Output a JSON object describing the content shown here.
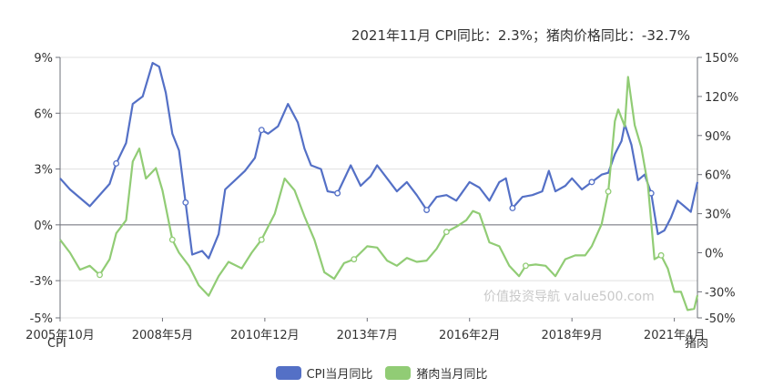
{
  "title": "2021年11月 CPI同比：2.3%；猪肉价格同比：-32.7%",
  "watermark": "价值投资导航 value500.com",
  "colors": {
    "cpi": "#5470c6",
    "pork": "#91cc75",
    "grid": "#e0e0e0",
    "axis": "#6e7079"
  },
  "chart_data": {
    "type": "line",
    "x_tick_labels": [
      "2005年10月",
      "2008年5月",
      "2010年12月",
      "2013年7月",
      "2016年2月",
      "2018年9月",
      "2021年4月"
    ],
    "y_left": {
      "name": "CPI",
      "ticks": [
        "9%",
        "6%",
        "3%",
        "0%",
        "-3%",
        "-5%"
      ],
      "tick_values": [
        9,
        6,
        3,
        0,
        -3,
        -5
      ],
      "min": -5,
      "max": 9
    },
    "y_right": {
      "name": "猪肉",
      "ticks": [
        "150%",
        "120%",
        "90%",
        "60%",
        "30%",
        "0%",
        "-30%",
        "-50%"
      ],
      "tick_values": [
        150,
        120,
        90,
        60,
        30,
        0,
        -30,
        -50
      ],
      "min": -50,
      "max": 150
    },
    "x_start": "2005-10",
    "x_end": "2021-11",
    "series": [
      {
        "name": "CPI当月同比",
        "axis": "left",
        "color": "#5470c6",
        "points": [
          [
            "2005-10",
            2.5
          ],
          [
            "2006-01",
            1.9
          ],
          [
            "2006-07",
            1.0
          ],
          [
            "2007-01",
            2.2
          ],
          [
            "2007-03",
            3.3
          ],
          [
            "2007-06",
            4.4
          ],
          [
            "2007-08",
            6.5
          ],
          [
            "2007-11",
            6.9
          ],
          [
            "2008-02",
            8.7
          ],
          [
            "2008-04",
            8.5
          ],
          [
            "2008-06",
            7.1
          ],
          [
            "2008-08",
            4.9
          ],
          [
            "2008-10",
            4.0
          ],
          [
            "2008-12",
            1.2
          ],
          [
            "2009-02",
            -1.6
          ],
          [
            "2009-05",
            -1.4
          ],
          [
            "2009-07",
            -1.8
          ],
          [
            "2009-10",
            -0.5
          ],
          [
            "2009-12",
            1.9
          ],
          [
            "2010-03",
            2.4
          ],
          [
            "2010-06",
            2.9
          ],
          [
            "2010-09",
            3.6
          ],
          [
            "2010-11",
            5.1
          ],
          [
            "2011-01",
            4.9
          ],
          [
            "2011-04",
            5.3
          ],
          [
            "2011-07",
            6.5
          ],
          [
            "2011-10",
            5.5
          ],
          [
            "2011-12",
            4.1
          ],
          [
            "2012-02",
            3.2
          ],
          [
            "2012-05",
            3.0
          ],
          [
            "2012-07",
            1.8
          ],
          [
            "2012-10",
            1.7
          ],
          [
            "2013-02",
            3.2
          ],
          [
            "2013-05",
            2.1
          ],
          [
            "2013-08",
            2.6
          ],
          [
            "2013-10",
            3.2
          ],
          [
            "2014-01",
            2.5
          ],
          [
            "2014-04",
            1.8
          ],
          [
            "2014-07",
            2.3
          ],
          [
            "2014-10",
            1.6
          ],
          [
            "2015-01",
            0.8
          ],
          [
            "2015-04",
            1.5
          ],
          [
            "2015-07",
            1.6
          ],
          [
            "2015-10",
            1.3
          ],
          [
            "2016-02",
            2.3
          ],
          [
            "2016-05",
            2.0
          ],
          [
            "2016-08",
            1.3
          ],
          [
            "2016-11",
            2.3
          ],
          [
            "2017-01",
            2.5
          ],
          [
            "2017-03",
            0.9
          ],
          [
            "2017-06",
            1.5
          ],
          [
            "2017-09",
            1.6
          ],
          [
            "2017-12",
            1.8
          ],
          [
            "2018-02",
            2.9
          ],
          [
            "2018-04",
            1.8
          ],
          [
            "2018-07",
            2.1
          ],
          [
            "2018-09",
            2.5
          ],
          [
            "2018-12",
            1.9
          ],
          [
            "2019-03",
            2.3
          ],
          [
            "2019-06",
            2.7
          ],
          [
            "2019-08",
            2.8
          ],
          [
            "2019-10",
            3.8
          ],
          [
            "2019-12",
            4.5
          ],
          [
            "2020-01",
            5.4
          ],
          [
            "2020-03",
            4.3
          ],
          [
            "2020-05",
            2.4
          ],
          [
            "2020-07",
            2.7
          ],
          [
            "2020-09",
            1.7
          ],
          [
            "2020-11",
            -0.5
          ],
          [
            "2021-01",
            -0.3
          ],
          [
            "2021-03",
            0.4
          ],
          [
            "2021-05",
            1.3
          ],
          [
            "2021-07",
            1.0
          ],
          [
            "2021-09",
            0.7
          ],
          [
            "2021-11",
            2.3
          ]
        ]
      },
      {
        "name": "猪肉当月同比",
        "axis": "right",
        "color": "#91cc75",
        "points": [
          [
            "2005-10",
            10
          ],
          [
            "2006-01",
            0
          ],
          [
            "2006-04",
            -13
          ],
          [
            "2006-07",
            -10
          ],
          [
            "2006-10",
            -17
          ],
          [
            "2007-01",
            -5
          ],
          [
            "2007-03",
            15
          ],
          [
            "2007-06",
            25
          ],
          [
            "2007-08",
            70
          ],
          [
            "2007-10",
            80
          ],
          [
            "2007-12",
            57
          ],
          [
            "2008-03",
            65
          ],
          [
            "2008-05",
            48
          ],
          [
            "2008-08",
            10
          ],
          [
            "2008-10",
            0
          ],
          [
            "2009-01",
            -10
          ],
          [
            "2009-04",
            -25
          ],
          [
            "2009-07",
            -33
          ],
          [
            "2009-10",
            -18
          ],
          [
            "2010-01",
            -7
          ],
          [
            "2010-05",
            -12
          ],
          [
            "2010-08",
            0
          ],
          [
            "2010-11",
            10
          ],
          [
            "2011-03",
            30
          ],
          [
            "2011-06",
            57
          ],
          [
            "2011-09",
            48
          ],
          [
            "2011-12",
            28
          ],
          [
            "2012-03",
            10
          ],
          [
            "2012-06",
            -15
          ],
          [
            "2012-09",
            -20
          ],
          [
            "2012-12",
            -8
          ],
          [
            "2013-03",
            -5
          ],
          [
            "2013-07",
            5
          ],
          [
            "2013-10",
            4
          ],
          [
            "2014-01",
            -6
          ],
          [
            "2014-04",
            -10
          ],
          [
            "2014-07",
            -4
          ],
          [
            "2014-10",
            -7
          ],
          [
            "2015-01",
            -6
          ],
          [
            "2015-04",
            3
          ],
          [
            "2015-07",
            16
          ],
          [
            "2015-10",
            20
          ],
          [
            "2016-01",
            25
          ],
          [
            "2016-03",
            32
          ],
          [
            "2016-05",
            30
          ],
          [
            "2016-08",
            8
          ],
          [
            "2016-11",
            5
          ],
          [
            "2017-02",
            -10
          ],
          [
            "2017-05",
            -18
          ],
          [
            "2017-07",
            -10
          ],
          [
            "2017-10",
            -9
          ],
          [
            "2018-01",
            -10
          ],
          [
            "2018-04",
            -18
          ],
          [
            "2018-07",
            -5
          ],
          [
            "2018-10",
            -2
          ],
          [
            "2019-01",
            -2
          ],
          [
            "2019-03",
            5
          ],
          [
            "2019-06",
            22
          ],
          [
            "2019-08",
            47
          ],
          [
            "2019-10",
            101
          ],
          [
            "2019-11",
            110
          ],
          [
            "2020-01",
            97
          ],
          [
            "2020-02",
            135
          ],
          [
            "2020-04",
            98
          ],
          [
            "2020-06",
            81
          ],
          [
            "2020-08",
            52
          ],
          [
            "2020-10",
            -5
          ],
          [
            "2020-12",
            -2
          ],
          [
            "2021-02",
            -12
          ],
          [
            "2021-04",
            -30
          ],
          [
            "2021-06",
            -30
          ],
          [
            "2021-08",
            -44
          ],
          [
            "2021-10",
            -43
          ],
          [
            "2021-11",
            -32.7
          ]
        ]
      }
    ]
  },
  "legend": [
    {
      "name": "CPI当月同比",
      "color": "#5470c6"
    },
    {
      "name": "猪肉当月同比",
      "color": "#91cc75"
    }
  ]
}
